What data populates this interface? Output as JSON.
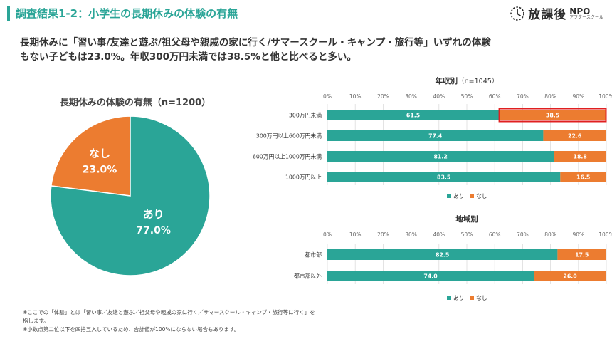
{
  "header": {
    "title": "調査結果1-2：小学生の長期休みの体験の有無",
    "logo_text": "放課後",
    "logo_npo": "NPO",
    "logo_sub": "アフタースクール"
  },
  "lead": {
    "line1": "長期休みに「習い事/友達と遊ぶ/祖父母や親戚の家に行く/サマースクール・キャンプ・旅行等」いずれの体験",
    "line2": "もない子どもは23.0%。年収300万円未満では38.5%と他と比べると多い。"
  },
  "colors": {
    "teal": "#2aa597",
    "orange": "#ec7c30",
    "highlight": "#e02020",
    "grid": "#dcdcdc"
  },
  "notes": {
    "line1": "※ここでの「体験」とは「習い事／友達と遊ぶ／祖父母や親戚の家に行く／サマースクール・キャンプ・旅行等に行く」を",
    "line2": "指します。",
    "line3": "※小数点第二位以下を四捨五入しているため、合計値が100%にならない場合もあります。"
  },
  "chart_data": [
    {
      "type": "pie",
      "title": "長期休みの体験の有無（n=1200）",
      "slices": [
        {
          "label": "あり",
          "value": 77.0,
          "display": "77.0%",
          "color": "#2aa597"
        },
        {
          "label": "なし",
          "value": 23.0,
          "display": "23.0%",
          "color": "#ec7c30"
        }
      ]
    },
    {
      "type": "bar",
      "orientation": "horizontal",
      "stacked": true,
      "title": "年収別",
      "subtitle": "（n=1045）",
      "xlim": [
        0,
        100
      ],
      "ticks": [
        "0%",
        "10%",
        "20%",
        "30%",
        "40%",
        "50%",
        "60%",
        "70%",
        "80%",
        "90%",
        "100%"
      ],
      "categories": [
        "300万円未満",
        "300万円以上600万円未満",
        "600万円以上1000万円未満",
        "1000万円以上"
      ],
      "series": [
        {
          "name": "あり",
          "color": "#2aa597",
          "values": [
            61.5,
            77.4,
            81.2,
            83.5
          ],
          "labels": [
            "61.5",
            "77.4",
            "81.2",
            "83.5"
          ]
        },
        {
          "name": "なし",
          "color": "#ec7c30",
          "values": [
            38.5,
            22.6,
            18.8,
            16.5
          ],
          "labels": [
            "38.5",
            "22.6",
            "18.8",
            "16.5"
          ]
        }
      ],
      "highlight": {
        "category": "300万円未満",
        "series": "なし"
      },
      "legend_position": "bottom"
    },
    {
      "type": "bar",
      "orientation": "horizontal",
      "stacked": true,
      "title": "地域別",
      "xlim": [
        0,
        100
      ],
      "ticks": [
        "0%",
        "10%",
        "20%",
        "30%",
        "40%",
        "50%",
        "60%",
        "70%",
        "80%",
        "90%",
        "100%"
      ],
      "categories": [
        "都市部",
        "都市部以外"
      ],
      "series": [
        {
          "name": "あり",
          "color": "#2aa597",
          "values": [
            82.5,
            74.0
          ],
          "labels": [
            "82.5",
            "74.0"
          ]
        },
        {
          "name": "なし",
          "color": "#ec7c30",
          "values": [
            17.5,
            26.0
          ],
          "labels": [
            "17.5",
            "26.0"
          ]
        }
      ],
      "legend_position": "bottom"
    }
  ]
}
